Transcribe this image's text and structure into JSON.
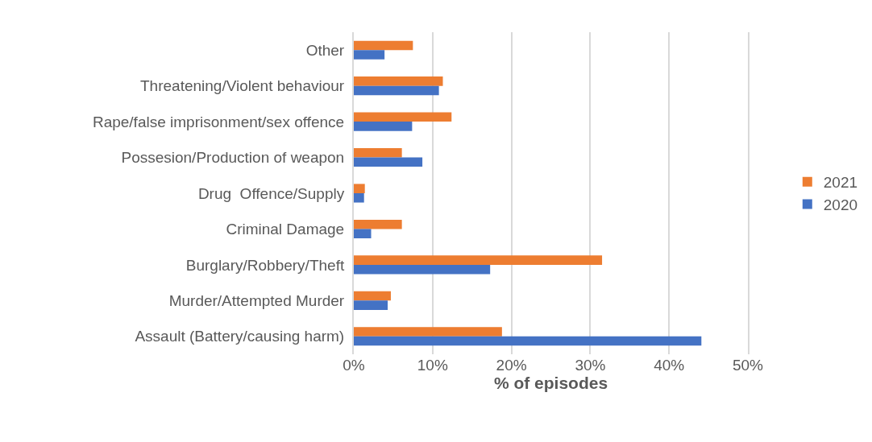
{
  "chart_data": {
    "type": "bar",
    "orientation": "horizontal",
    "xlabel": "% of episodes",
    "categories": [
      "Other",
      "Threatening/Violent behaviour",
      "Rape/false imprisonment/sex offence",
      "Possesion/Production of weapon",
      "Drug  Offence/Supply",
      "Criminal Damage",
      "Burglary/Robbery/Theft",
      "Murder/Attempted Murder",
      "Assault (Battery/causing harm)"
    ],
    "series": [
      {
        "name": "2021",
        "color": "#ed7d31",
        "values": [
          7.5,
          11.3,
          12.4,
          6.1,
          1.4,
          6.1,
          31.5,
          4.7,
          18.8
        ]
      },
      {
        "name": "2020",
        "color": "#4472c4",
        "values": [
          3.9,
          10.8,
          7.4,
          8.7,
          1.3,
          2.2,
          17.3,
          4.3,
          44.1
        ]
      }
    ],
    "xlim": [
      0,
      50
    ],
    "xticks": [
      {
        "value": 0,
        "label": "0%"
      },
      {
        "value": 10,
        "label": "10%"
      },
      {
        "value": 20,
        "label": "20%"
      },
      {
        "value": 30,
        "label": "30%"
      },
      {
        "value": 40,
        "label": "40%"
      },
      {
        "value": 50,
        "label": "50%"
      }
    ],
    "grid": "x",
    "legend": "right"
  }
}
